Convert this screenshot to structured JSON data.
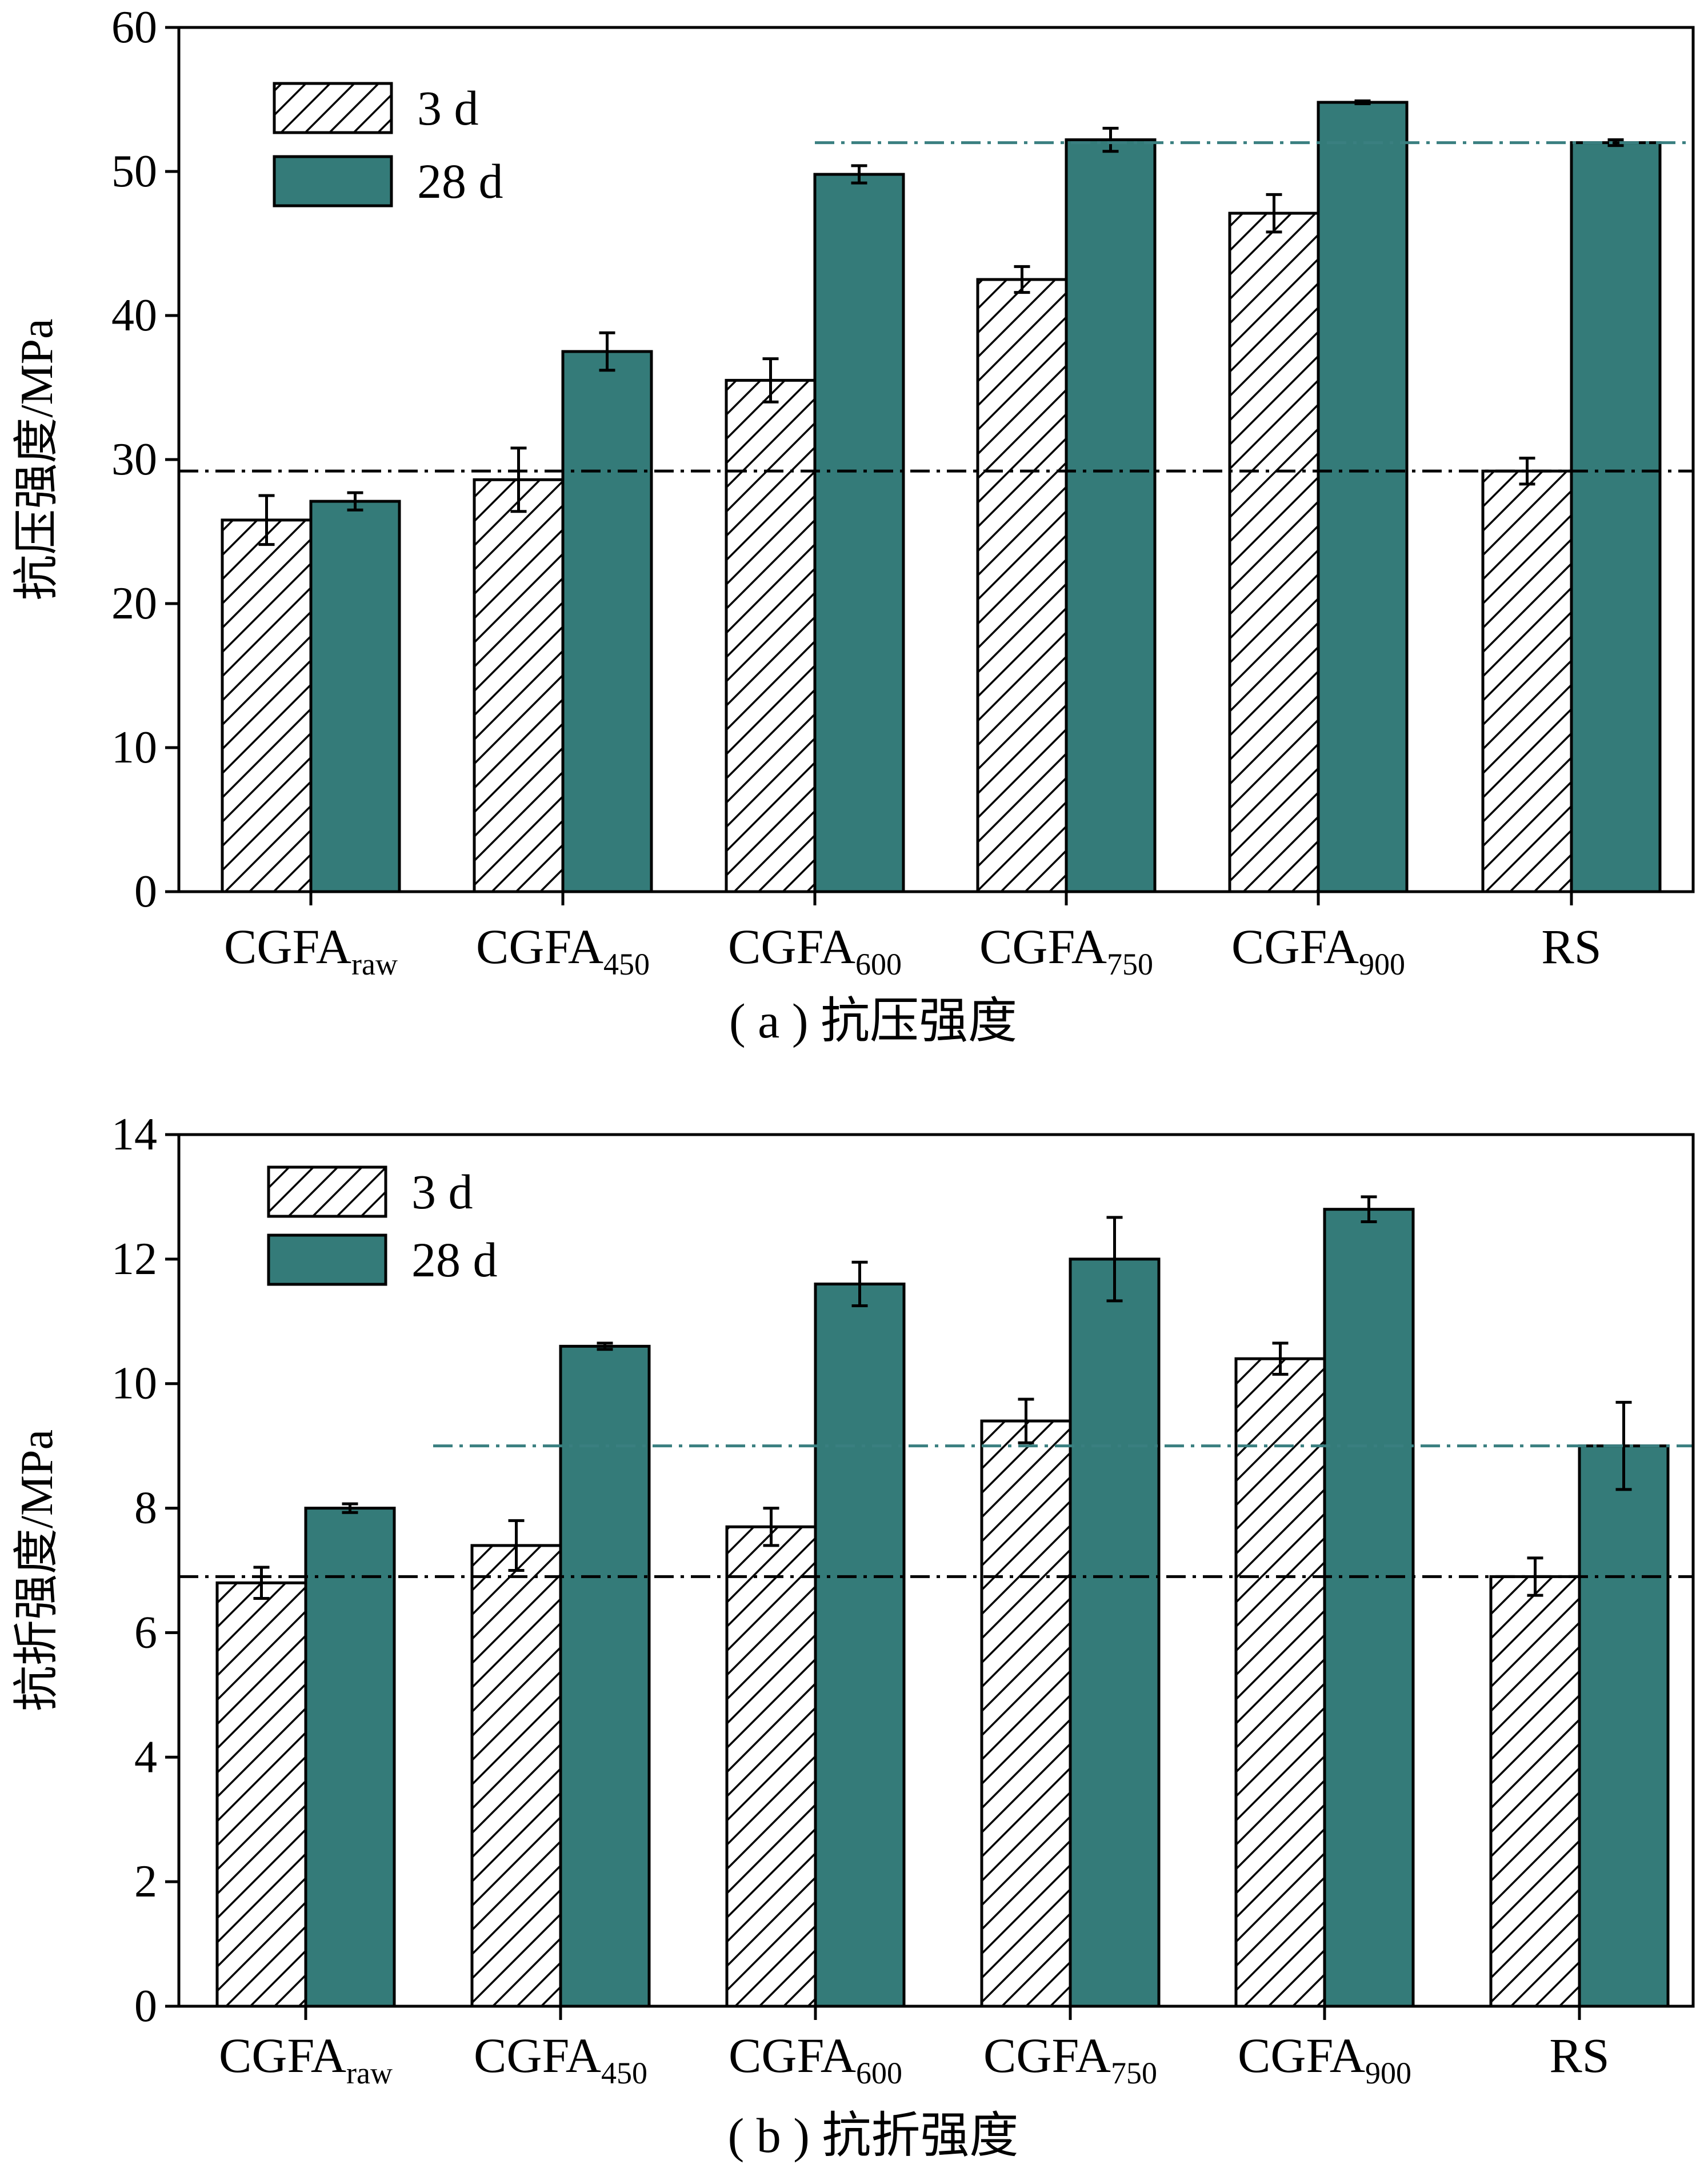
{
  "colors": {
    "bar_28d_fill": "#347B79",
    "hatch_stroke": "#000000",
    "ref_line_3d": "#000000",
    "ref_line_28d": "#3A7F80"
  },
  "chart_data": [
    {
      "type": "bar",
      "caption": "( a ) 抗压强度",
      "ylabel": "抗压强度/MPa",
      "ylim": [
        0,
        60
      ],
      "yticks": [
        "0",
        "10",
        "20",
        "30",
        "40",
        "50",
        "60"
      ],
      "categories": [
        {
          "main": "CGFA",
          "sub": "raw"
        },
        {
          "main": "CGFA",
          "sub": "450"
        },
        {
          "main": "CGFA",
          "sub": "600"
        },
        {
          "main": "CGFA",
          "sub": "750"
        },
        {
          "main": "CGFA",
          "sub": "900"
        },
        {
          "main": "RS",
          "sub": ""
        }
      ],
      "series": [
        {
          "name": "3 d",
          "style": "hatched",
          "values": [
            25.8,
            28.6,
            35.5,
            42.5,
            47.1,
            29.2
          ],
          "errors": [
            1.7,
            2.2,
            1.5,
            0.9,
            1.3,
            0.9
          ]
        },
        {
          "name": "28 d",
          "style": "solid",
          "values": [
            27.1,
            37.5,
            49.8,
            52.2,
            54.8,
            52.0
          ],
          "errors": [
            0.6,
            1.3,
            0.6,
            0.8,
            0.1,
            0.2
          ]
        }
      ],
      "reference_lines": [
        {
          "series": "3 d",
          "value": 29.2,
          "x_from_category": 0,
          "style": "dash-dot",
          "color": "#000000"
        },
        {
          "series": "28 d",
          "value": 52.0,
          "x_from_category": 2,
          "style": "dash-dot",
          "color": "#3A7F80"
        }
      ],
      "legend": {
        "placement": "top-left"
      },
      "grid": false
    },
    {
      "type": "bar",
      "caption": "( b ) 抗折强度",
      "ylabel": "抗折强度/MPa",
      "ylim": [
        0,
        14
      ],
      "yticks": [
        "0",
        "2",
        "4",
        "6",
        "8",
        "10",
        "12",
        "14"
      ],
      "categories": [
        {
          "main": "CGFA",
          "sub": "raw"
        },
        {
          "main": "CGFA",
          "sub": "450"
        },
        {
          "main": "CGFA",
          "sub": "600"
        },
        {
          "main": "CGFA",
          "sub": "750"
        },
        {
          "main": "CGFA",
          "sub": "900"
        },
        {
          "main": "RS",
          "sub": ""
        }
      ],
      "series": [
        {
          "name": "3 d",
          "style": "hatched",
          "values": [
            6.8,
            7.4,
            7.7,
            9.4,
            10.4,
            6.9
          ],
          "errors": [
            0.25,
            0.4,
            0.3,
            0.35,
            0.25,
            0.3
          ]
        },
        {
          "name": "28 d",
          "style": "solid",
          "values": [
            8.0,
            10.6,
            11.6,
            12.0,
            12.8,
            9.0
          ],
          "errors": [
            0.07,
            0.05,
            0.35,
            0.67,
            0.2,
            0.7
          ]
        }
      ],
      "reference_lines": [
        {
          "series": "3 d",
          "value": 6.9,
          "x_from_category": 0,
          "style": "dash-dot",
          "color": "#000000"
        },
        {
          "series": "28 d",
          "value": 9.0,
          "x_from_category": 0.5,
          "style": "dash-dot",
          "color": "#3A7F80"
        }
      ],
      "legend": {
        "placement": "top-left"
      },
      "grid": false
    }
  ]
}
